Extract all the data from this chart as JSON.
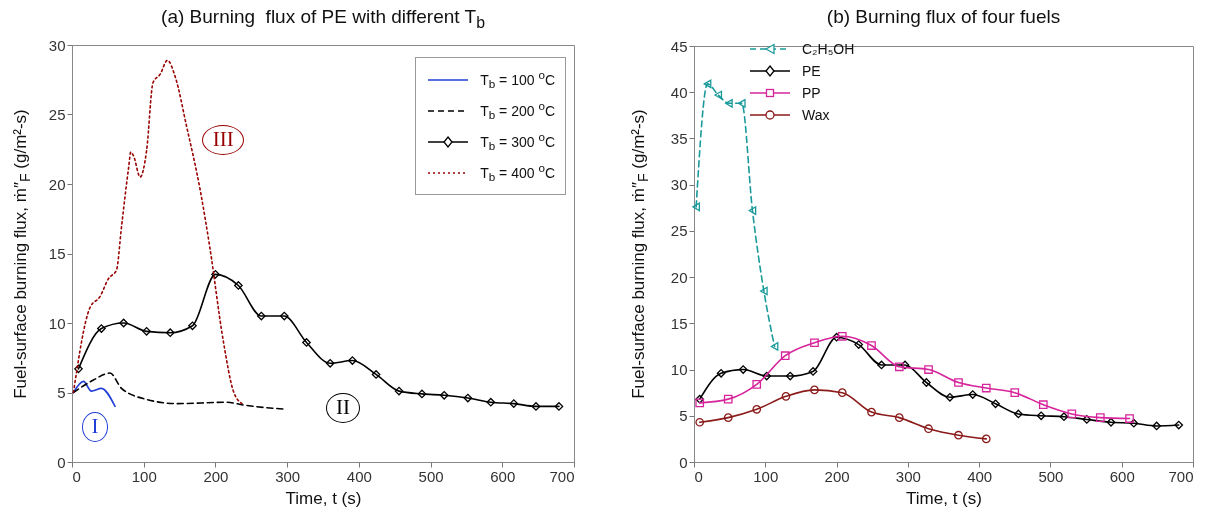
{
  "chart_data": [
    {
      "type": "line",
      "title": "(a) Burning  flux of PE with different T$_{b}$",
      "xlabel": "Time, t (s)",
      "ylabel": "Fuel-surface burning flux, ṁ″$_{F}$ (g/m²-s)",
      "xlim": [
        0,
        700
      ],
      "xticks": [
        0,
        100,
        200,
        300,
        400,
        500,
        600,
        700
      ],
      "ylim": [
        0,
        30
      ],
      "yticks": [
        0,
        5,
        10,
        15,
        20,
        25,
        30
      ],
      "legend": "top right",
      "series": [
        {
          "name": "T$_{b}$ = 100 $^{o}$C",
          "color": "#1f3fd6",
          "line_style": "solid",
          "marker": "none",
          "x": [
            2,
            16,
            27,
            41,
            60
          ],
          "values": [
            5.0,
            5.8,
            5.1,
            5.3,
            4.0
          ]
        },
        {
          "name": "T$_{b}$ = 200 $^{o}$C",
          "color": "#000000",
          "line_style": "dashed",
          "marker": "none",
          "x": [
            2,
            30,
            53,
            69,
            104,
            146,
            216,
            239,
            297
          ],
          "values": [
            5.0,
            5.9,
            6.4,
            5.3,
            4.5,
            4.2,
            4.3,
            4.1,
            3.8
          ]
        },
        {
          "name": "T$_{b}$ = 300 $^{o}$C",
          "color": "#000000",
          "line_style": "solid",
          "marker": "diamond",
          "x": [
            9,
            41,
            72,
            104,
            137,
            168,
            200,
            232,
            264,
            296,
            327,
            360,
            391,
            424,
            456,
            488,
            519,
            552,
            584,
            616,
            647,
            679
          ],
          "values": [
            6.7,
            9.6,
            10.0,
            9.4,
            9.3,
            9.8,
            13.5,
            12.7,
            10.5,
            10.5,
            8.6,
            7.1,
            7.3,
            6.3,
            5.1,
            4.9,
            4.8,
            4.6,
            4.3,
            4.2,
            4.0,
            4.0
          ]
        },
        {
          "name": "T$_{b}$ = 400 $^{o}$C",
          "color": "#990000",
          "line_style": "dotted",
          "marker": "none",
          "x": [
            2,
            25,
            39,
            51,
            62,
            69,
            79,
            82,
            86,
            95,
            104,
            113,
            123,
            133,
            144,
            160,
            179,
            192,
            211,
            225,
            237
          ],
          "values": [
            5.0,
            11.1,
            11.9,
            13.2,
            13.8,
            16.9,
            21.2,
            22.3,
            22.0,
            20.5,
            22.4,
            27.3,
            27.9,
            28.9,
            27.7,
            24.1,
            19.5,
            15.5,
            8.7,
            5.1,
            4.2
          ]
        }
      ],
      "annotations": [
        {
          "text": "I",
          "x": 32,
          "y": 2.5
        },
        {
          "text": "II",
          "x": 378,
          "y": 3.9
        },
        {
          "text": "III",
          "x": 211,
          "y": 23.2
        }
      ]
    },
    {
      "type": "line",
      "title": "(b) Burning flux of four fuels",
      "xlabel": "Time, t (s)",
      "ylabel": "Fuel-surface burning flux, ṁ″$_{F}$ (g/m²-s)",
      "xlim": [
        0,
        700
      ],
      "xticks": [
        0,
        100,
        200,
        300,
        400,
        500,
        600,
        700
      ],
      "ylim": [
        0,
        45
      ],
      "yticks": [
        0,
        5,
        10,
        15,
        20,
        25,
        30,
        35,
        40,
        45
      ],
      "legend": "top left",
      "series": [
        {
          "name": "C₂H₅OH",
          "color": "#1a9a9a",
          "line_style": "dashed",
          "marker": "triangle",
          "x": [
            3,
            19,
            34,
            49,
            67,
            82,
            98,
            113
          ],
          "values": [
            27.6,
            40.9,
            39.7,
            38.8,
            38.8,
            27.2,
            18.5,
            12.5
          ]
        },
        {
          "name": "PE",
          "color": "#000000",
          "line_style": "solid",
          "marker": "diamond",
          "x": [
            8,
            38,
            69,
            102,
            135,
            167,
            200,
            231,
            263,
            296,
            326,
            359,
            391,
            423,
            455,
            487,
            519,
            551,
            585,
            617,
            649,
            680
          ],
          "values": [
            6.8,
            9.6,
            10.0,
            9.3,
            9.3,
            9.8,
            13.5,
            12.7,
            10.5,
            10.5,
            8.6,
            7.0,
            7.3,
            6.3,
            5.2,
            5.0,
            4.9,
            4.6,
            4.3,
            4.2,
            3.9,
            4.0
          ]
        },
        {
          "name": "PP",
          "color": "#d6249b",
          "line_style": "solid",
          "marker": "square",
          "x": [
            8,
            48,
            88,
            128,
            169,
            208,
            249,
            288,
            329,
            371,
            410,
            450,
            490,
            530,
            570,
            611
          ],
          "values": [
            6.4,
            6.8,
            8.4,
            11.5,
            12.9,
            13.6,
            12.6,
            10.3,
            10.0,
            8.6,
            8.0,
            7.5,
            6.2,
            5.2,
            4.8,
            4.7
          ]
        },
        {
          "name": "Wax",
          "color": "#8b1a1a",
          "line_style": "solid",
          "marker": "circle",
          "x": [
            8,
            48,
            88,
            129,
            169,
            208,
            249,
            288,
            329,
            371,
            410
          ],
          "values": [
            4.3,
            4.8,
            5.7,
            7.1,
            7.8,
            7.5,
            5.4,
            4.8,
            3.6,
            2.9,
            2.5
          ]
        }
      ]
    }
  ]
}
